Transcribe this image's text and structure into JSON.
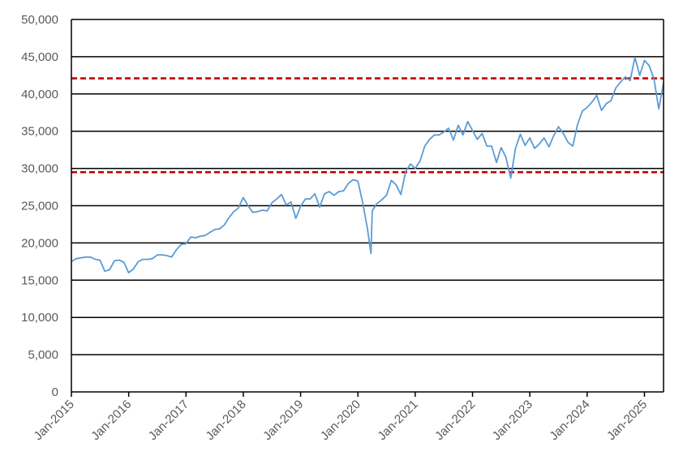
{
  "chart_data": {
    "type": "line",
    "title": "",
    "xlabel": "",
    "ylabel": "",
    "ylim": [
      0,
      50000
    ],
    "y_ticks": [
      0,
      5000,
      10000,
      15000,
      20000,
      25000,
      30000,
      35000,
      40000,
      45000,
      50000
    ],
    "y_tick_labels": [
      "0",
      "5,000",
      "10,000",
      "15,000",
      "20,000",
      "25,000",
      "30,000",
      "35,000",
      "40,000",
      "45,000",
      "50,000"
    ],
    "x_range": [
      "2015-01",
      "2025-05"
    ],
    "x_ticks": [
      "2015-01",
      "2016-01",
      "2017-01",
      "2018-01",
      "2019-01",
      "2020-01",
      "2021-01",
      "2022-01",
      "2023-01",
      "2024-01",
      "2025-01"
    ],
    "x_tick_labels": [
      "Jan-2015",
      "Jan-2016",
      "Jan-2017",
      "Jan-2018",
      "Jan-2019",
      "Jan-2020",
      "Jan-2021",
      "Jan-2022",
      "Jan-2023",
      "Jan-2024",
      "Jan-2025"
    ],
    "grid": true,
    "legend": "none",
    "colors": {
      "series": "#5b9bd5",
      "reference_lines": "#c00000",
      "grid": "#000000",
      "axis": "#000000",
      "tick_text": "#595959"
    },
    "reference_lines": [
      {
        "y": 42100,
        "style": "dashed"
      },
      {
        "y": 29500,
        "style": "dashed"
      }
    ],
    "series": [
      {
        "points": [
          [
            "2015-01",
            17500
          ],
          [
            "2015-02",
            17900
          ],
          [
            "2015-03",
            18000
          ],
          [
            "2015-04",
            18100
          ],
          [
            "2015-05",
            18100
          ],
          [
            "2015-06",
            17800
          ],
          [
            "2015-07",
            17700
          ],
          [
            "2015-08",
            16200
          ],
          [
            "2015-09",
            16400
          ],
          [
            "2015-10",
            17600
          ],
          [
            "2015-11",
            17700
          ],
          [
            "2015-12",
            17400
          ],
          [
            "2016-01",
            16000
          ],
          [
            "2016-02",
            16500
          ],
          [
            "2016-03",
            17500
          ],
          [
            "2016-04",
            17800
          ],
          [
            "2016-05",
            17800
          ],
          [
            "2016-06",
            17900
          ],
          [
            "2016-07",
            18400
          ],
          [
            "2016-08",
            18400
          ],
          [
            "2016-09",
            18300
          ],
          [
            "2016-10",
            18100
          ],
          [
            "2016-11",
            19100
          ],
          [
            "2016-12",
            19800
          ],
          [
            "2017-01",
            19900
          ],
          [
            "2017-02",
            20800
          ],
          [
            "2017-03",
            20700
          ],
          [
            "2017-04",
            20900
          ],
          [
            "2017-05",
            21000
          ],
          [
            "2017-06",
            21400
          ],
          [
            "2017-07",
            21800
          ],
          [
            "2017-08",
            21900
          ],
          [
            "2017-09",
            22400
          ],
          [
            "2017-10",
            23400
          ],
          [
            "2017-11",
            24200
          ],
          [
            "2017-12",
            24700
          ],
          [
            "2018-01",
            26100
          ],
          [
            "2018-02",
            25000
          ],
          [
            "2018-03",
            24100
          ],
          [
            "2018-04",
            24200
          ],
          [
            "2018-05",
            24400
          ],
          [
            "2018-06",
            24300
          ],
          [
            "2018-07",
            25400
          ],
          [
            "2018-08",
            25900
          ],
          [
            "2018-09",
            26500
          ],
          [
            "2018-10",
            25100
          ],
          [
            "2018-11",
            25500
          ],
          [
            "2018-12",
            23300
          ],
          [
            "2019-01",
            24900
          ],
          [
            "2019-02",
            25900
          ],
          [
            "2019-03",
            25900
          ],
          [
            "2019-04",
            26600
          ],
          [
            "2019-05",
            24800
          ],
          [
            "2019-06",
            26600
          ],
          [
            "2019-07",
            26900
          ],
          [
            "2019-08",
            26400
          ],
          [
            "2019-09",
            26900
          ],
          [
            "2019-10",
            27000
          ],
          [
            "2019-11",
            28000
          ],
          [
            "2019-12",
            28500
          ],
          [
            "2020-01",
            28300
          ],
          [
            "2020-02",
            25400
          ],
          [
            "2020-03",
            21900
          ],
          [
            "2020-03-23",
            18600
          ],
          [
            "2020-04",
            24300
          ],
          [
            "2020-05",
            25300
          ],
          [
            "2020-06",
            25800
          ],
          [
            "2020-07",
            26400
          ],
          [
            "2020-08",
            28400
          ],
          [
            "2020-09",
            27800
          ],
          [
            "2020-10",
            26500
          ],
          [
            "2020-11",
            29600
          ],
          [
            "2020-12",
            30600
          ],
          [
            "2021-01",
            30000
          ],
          [
            "2021-02",
            31000
          ],
          [
            "2021-03",
            33000
          ],
          [
            "2021-04",
            33900
          ],
          [
            "2021-05",
            34500
          ],
          [
            "2021-06",
            34500
          ],
          [
            "2021-07",
            34900
          ],
          [
            "2021-08",
            35400
          ],
          [
            "2021-09",
            33800
          ],
          [
            "2021-10",
            35800
          ],
          [
            "2021-11",
            34500
          ],
          [
            "2021-12",
            36300
          ],
          [
            "2022-01",
            35100
          ],
          [
            "2022-02",
            33900
          ],
          [
            "2022-03",
            34700
          ],
          [
            "2022-04",
            33000
          ],
          [
            "2022-05",
            33000
          ],
          [
            "2022-06",
            30800
          ],
          [
            "2022-07",
            32800
          ],
          [
            "2022-08",
            31500
          ],
          [
            "2022-09",
            28700
          ],
          [
            "2022-10",
            32700
          ],
          [
            "2022-11",
            34600
          ],
          [
            "2022-12",
            33100
          ],
          [
            "2023-01",
            34100
          ],
          [
            "2023-02",
            32700
          ],
          [
            "2023-03",
            33300
          ],
          [
            "2023-04",
            34100
          ],
          [
            "2023-05",
            32900
          ],
          [
            "2023-06",
            34400
          ],
          [
            "2023-07",
            35600
          ],
          [
            "2023-08",
            34700
          ],
          [
            "2023-09",
            33500
          ],
          [
            "2023-10",
            33000
          ],
          [
            "2023-11",
            35900
          ],
          [
            "2023-12",
            37700
          ],
          [
            "2024-01",
            38200
          ],
          [
            "2024-02",
            38900
          ],
          [
            "2024-03",
            39800
          ],
          [
            "2024-04",
            37800
          ],
          [
            "2024-05",
            38700
          ],
          [
            "2024-06",
            39100
          ],
          [
            "2024-07",
            40800
          ],
          [
            "2024-08",
            41600
          ],
          [
            "2024-09",
            42300
          ],
          [
            "2024-10",
            41800
          ],
          [
            "2024-11",
            44900
          ],
          [
            "2024-12",
            42500
          ],
          [
            "2025-01",
            44500
          ],
          [
            "2025-02",
            43800
          ],
          [
            "2025-03",
            42000
          ],
          [
            "2025-04",
            38000
          ],
          [
            "2025-05",
            41500
          ]
        ]
      }
    ]
  }
}
